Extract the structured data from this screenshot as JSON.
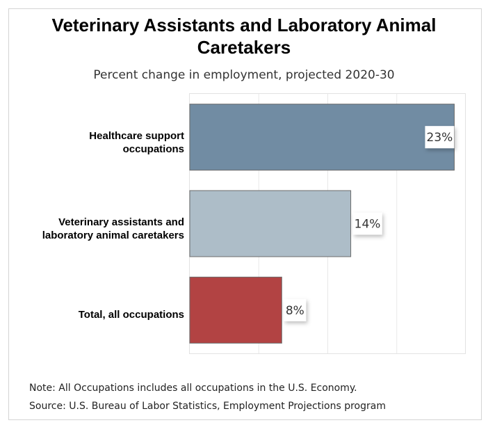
{
  "chart_data": {
    "type": "bar",
    "orientation": "horizontal",
    "title": "Veterinary Assistants and Laboratory Animal Caretakers",
    "subtitle": "Percent change in employment, projected 2020-30",
    "categories": [
      "Healthcare support occupations",
      "Veterinary assistants and laboratory animal caretakers",
      "Total, all occupations"
    ],
    "category_lines": [
      [
        "Healthcare support",
        "occupations"
      ],
      [
        "Veterinary assistants and",
        "laboratory animal caretakers"
      ],
      [
        "Total, all occupations"
      ]
    ],
    "values": [
      23,
      14,
      8
    ],
    "data_labels": [
      "23%",
      "14%",
      "8%"
    ],
    "colors": [
      "#718ca3",
      "#adbdc8",
      "#b24343"
    ],
    "xlim": [
      0,
      24
    ],
    "gridlines": [
      6,
      12,
      18
    ],
    "grid": true,
    "xlabel": "",
    "ylabel": ""
  },
  "notes": {
    "note": "Note: All Occupations includes all occupations in the U.S. Economy.",
    "source": "Source: U.S. Bureau of Labor Statistics, Employment Projections program"
  }
}
